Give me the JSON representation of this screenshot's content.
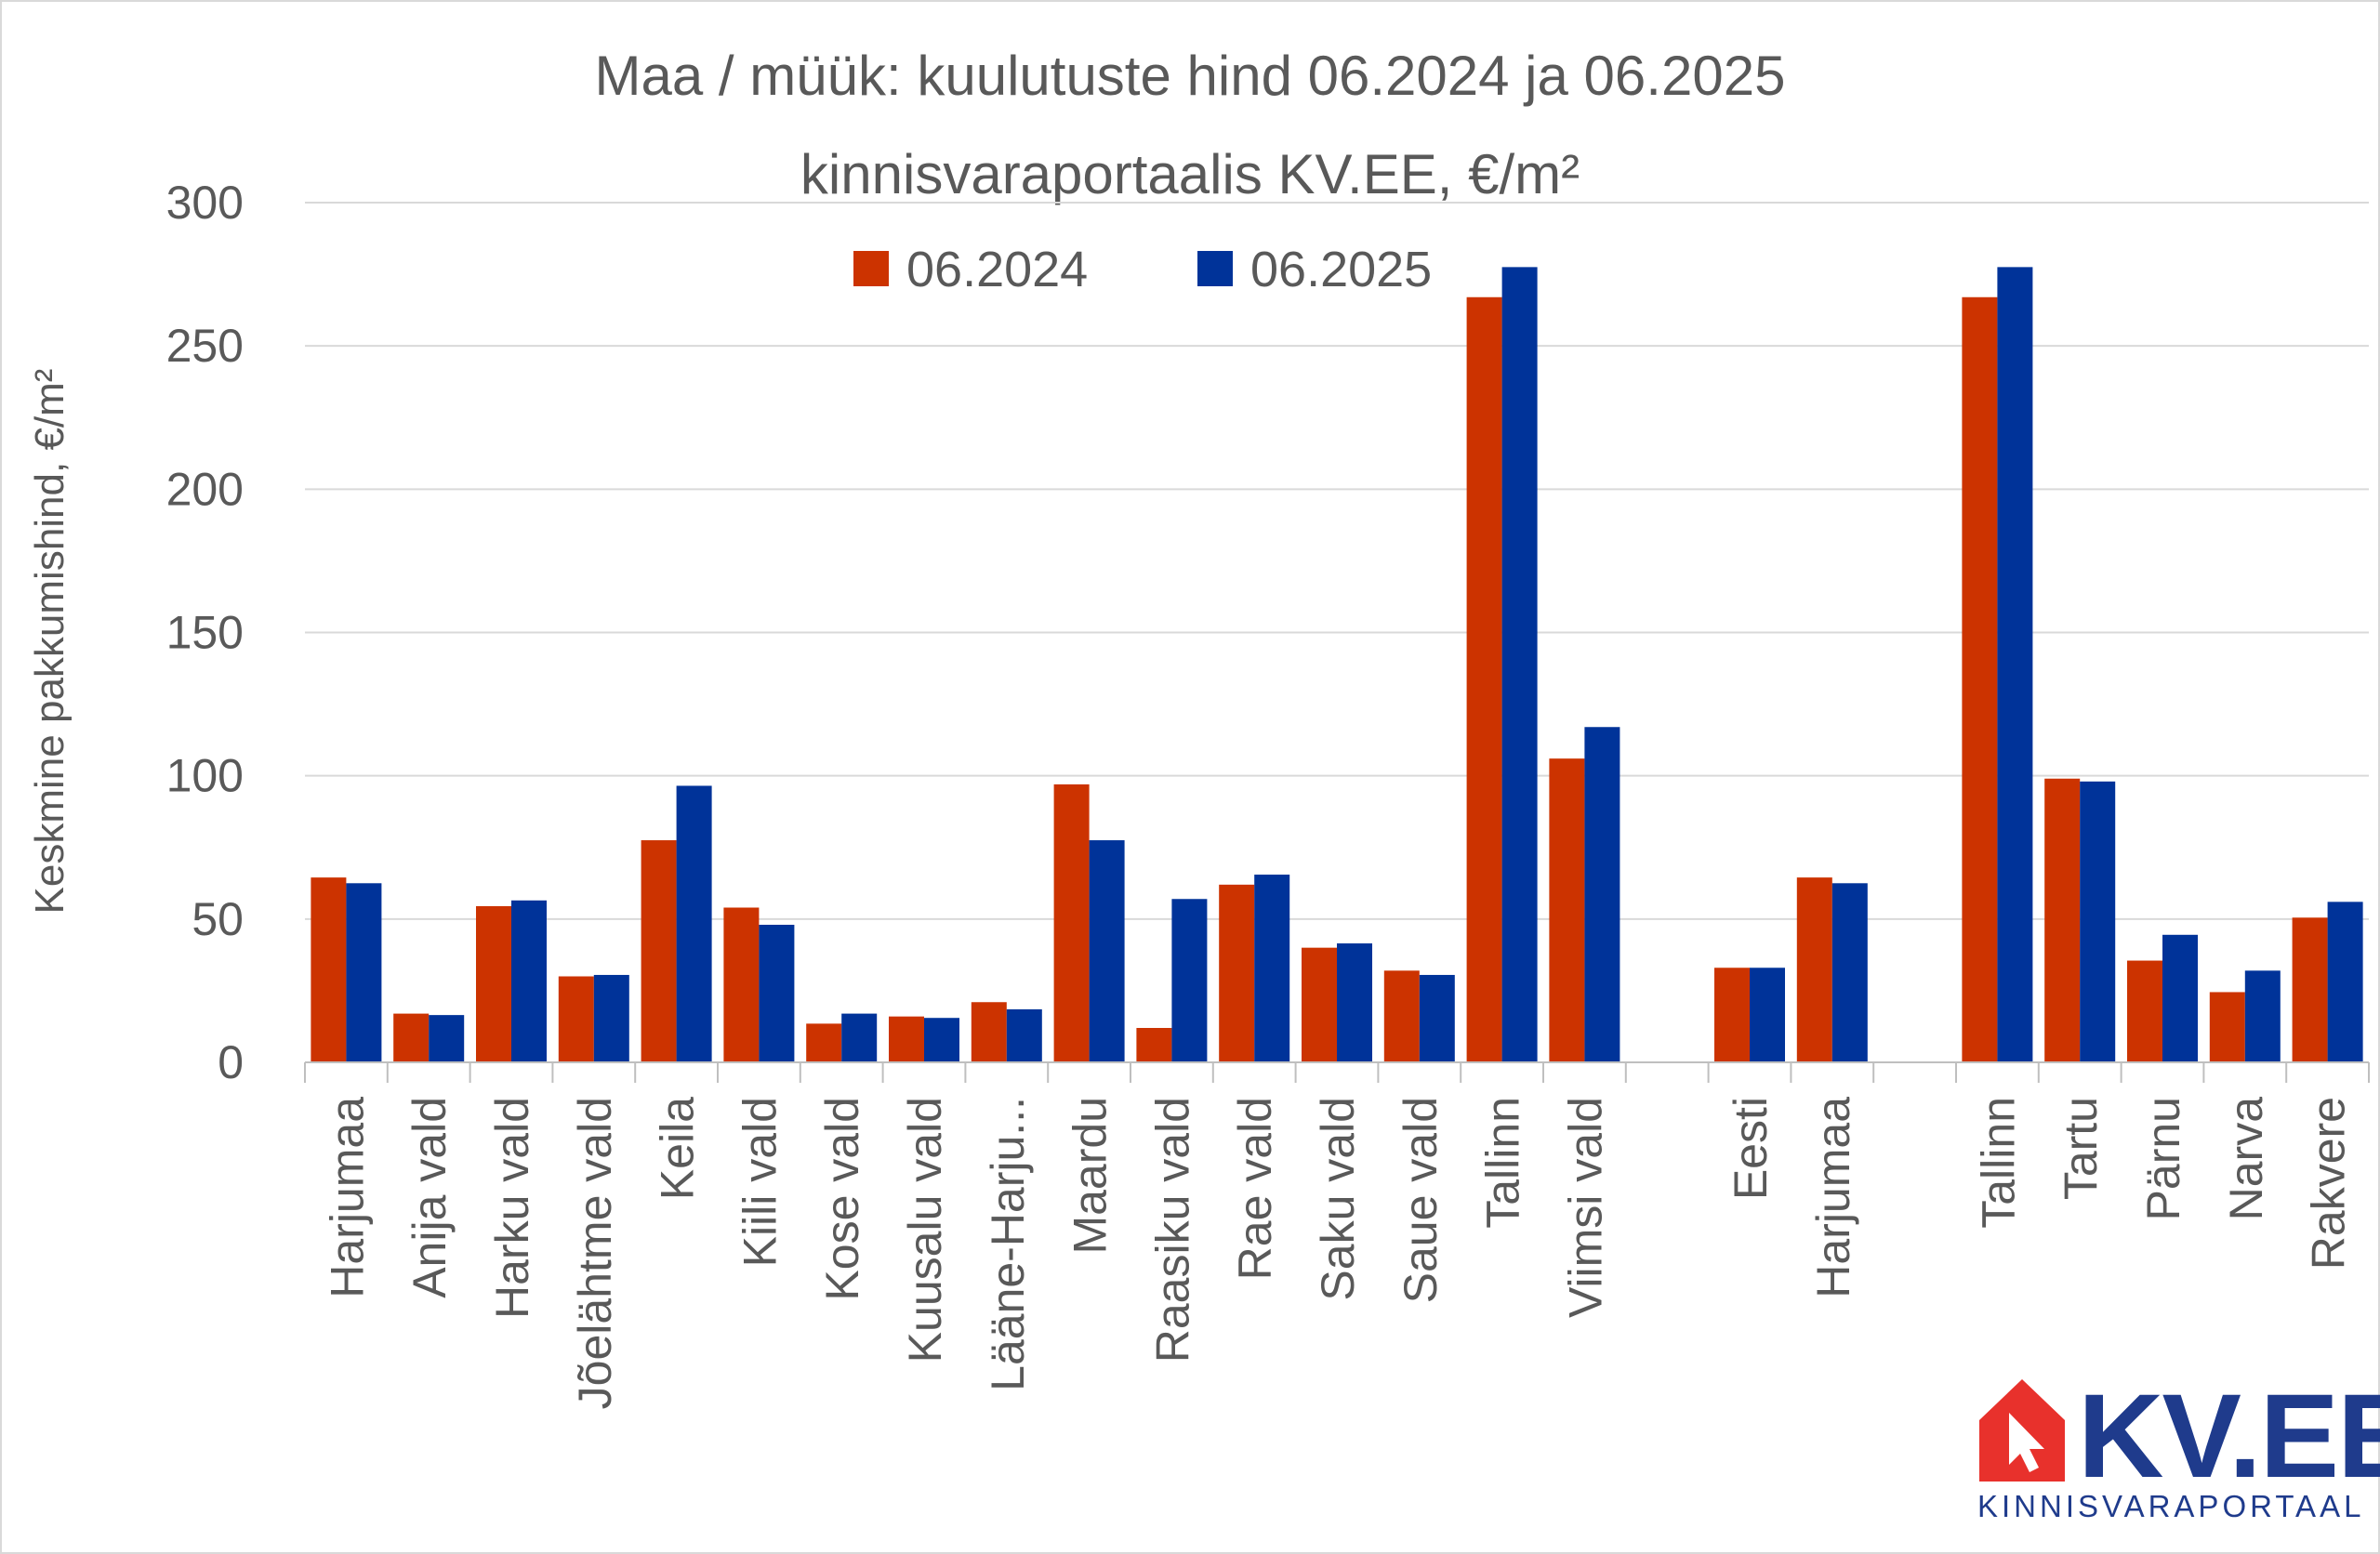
{
  "chart_data": {
    "type": "bar",
    "title_line1": "Maa / müük: kuulutuste hind 06.2024 ja 06.2025",
    "title_line2": "kinnisvaraportaalis KV.EE, €/m²",
    "ylabel": "Keskmine pakkumishind, €/m²",
    "ylim": [
      0,
      300
    ],
    "yticks": [
      0,
      50,
      100,
      150,
      200,
      250,
      300
    ],
    "grid": true,
    "legend_position": "top-center",
    "categories": [
      "Harjumaa",
      "Anija vald",
      "Harku vald",
      "Jõelähtme vald",
      "Keila",
      "Kiili vald",
      "Kose vald",
      "Kuusalu vald",
      "Lääne-Harju...",
      "Maardu",
      "Raasiku vald",
      "Rae vald",
      "Saku vald",
      "Saue vald",
      "Tallinn",
      "Viimsi vald",
      "",
      "Eesti",
      "Harjumaa",
      "",
      "Tallinn",
      "Tartu",
      "Pärnu",
      "Narva",
      "Rakvere"
    ],
    "series": [
      {
        "name": "06.2024",
        "color": "#cc3300",
        "values": [
          64.5,
          17,
          54.5,
          30,
          77.5,
          54,
          13.5,
          16,
          21,
          97,
          12,
          62,
          40,
          32,
          267,
          106,
          null,
          33,
          64.5,
          null,
          267,
          99,
          35.5,
          24.5,
          50.5
        ]
      },
      {
        "name": "06.2025",
        "color": "#003399",
        "values": [
          62.5,
          16.5,
          56.5,
          30.5,
          96.5,
          48,
          17,
          15.5,
          18.5,
          77.5,
          57,
          65.5,
          41.5,
          30.5,
          277.5,
          117,
          null,
          33,
          62.5,
          null,
          277.5,
          98,
          44.5,
          32,
          56
        ]
      }
    ]
  },
  "logo": {
    "brand": "KV.EE",
    "tagline": "KINNISVARAPORTAAL",
    "icon": "house-cursor-icon",
    "icon_color": "#e8312c",
    "text_color": "#1f3b8c"
  }
}
